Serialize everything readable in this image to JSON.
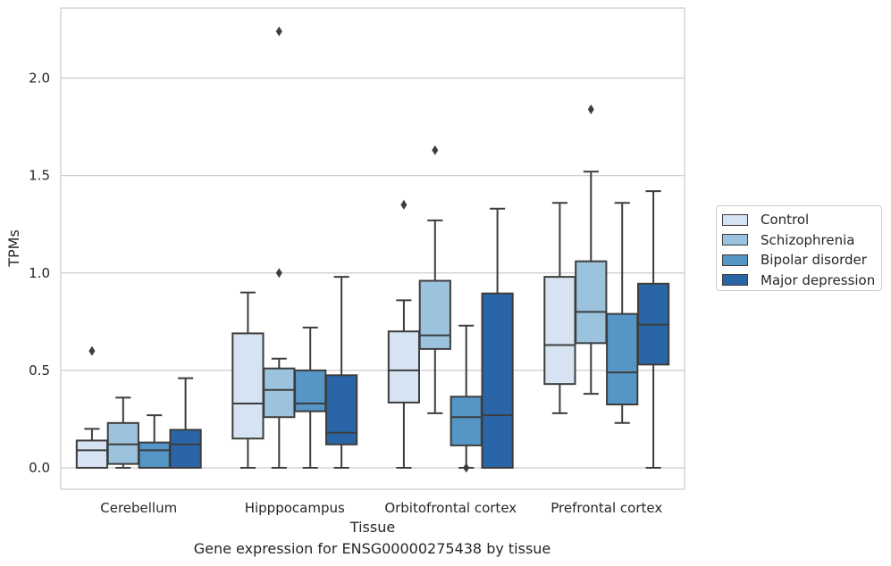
{
  "chart_data": {
    "type": "box",
    "caption": "Gene expression for ENSG00000275438 by tissue",
    "xlabel": "Tissue",
    "ylabel": "TPMs",
    "ylim": [
      -0.11,
      2.36
    ],
    "yticks": [
      0.0,
      0.5,
      1.0,
      1.5,
      2.0
    ],
    "ytick_labels": [
      "0.0",
      "0.5",
      "1.0",
      "1.5",
      "2.0"
    ],
    "grid": "horizontal",
    "legend_position": "right",
    "categories": [
      "Cerebellum",
      "Hipppocampus",
      "Orbitofrontal cortex",
      "Prefrontal cortex"
    ],
    "series": [
      {
        "name": "Control",
        "color": "#d6e3f3",
        "boxes": [
          {
            "whislo": 0.0,
            "q1": 0.0,
            "med": 0.09,
            "q3": 0.14,
            "whishi": 0.2,
            "fliers": [
              0.6
            ]
          },
          {
            "whislo": 0.0,
            "q1": 0.15,
            "med": 0.33,
            "q3": 0.69,
            "whishi": 0.9,
            "fliers": []
          },
          {
            "whislo": 0.0,
            "q1": 0.335,
            "med": 0.5,
            "q3": 0.7,
            "whishi": 0.86,
            "fliers": [
              1.35
            ]
          },
          {
            "whislo": 0.28,
            "q1": 0.43,
            "med": 0.63,
            "q3": 0.98,
            "whishi": 1.36,
            "fliers": []
          }
        ]
      },
      {
        "name": "Schizophrenia",
        "color": "#9bc3de",
        "boxes": [
          {
            "whislo": 0.0,
            "q1": 0.02,
            "med": 0.12,
            "q3": 0.23,
            "whishi": 0.36,
            "fliers": []
          },
          {
            "whislo": 0.0,
            "q1": 0.26,
            "med": 0.4,
            "q3": 0.51,
            "whishi": 0.56,
            "fliers": [
              1.0,
              2.24
            ]
          },
          {
            "whislo": 0.28,
            "q1": 0.61,
            "med": 0.68,
            "q3": 0.96,
            "whishi": 1.27,
            "fliers": [
              1.63
            ]
          },
          {
            "whislo": 0.38,
            "q1": 0.64,
            "med": 0.8,
            "q3": 1.06,
            "whishi": 1.52,
            "fliers": [
              1.84
            ]
          }
        ]
      },
      {
        "name": "Bipolar disorder",
        "color": "#5596c7",
        "boxes": [
          {
            "whislo": 0.0,
            "q1": 0.0,
            "med": 0.09,
            "q3": 0.13,
            "whishi": 0.27,
            "fliers": []
          },
          {
            "whislo": 0.0,
            "q1": 0.29,
            "med": 0.33,
            "q3": 0.5,
            "whishi": 0.72,
            "fliers": []
          },
          {
            "whislo": 0.0,
            "q1": 0.115,
            "med": 0.26,
            "q3": 0.365,
            "whishi": 0.73,
            "fliers": [
              0.0
            ]
          },
          {
            "whislo": 0.23,
            "q1": 0.325,
            "med": 0.49,
            "q3": 0.79,
            "whishi": 1.36,
            "fliers": []
          }
        ]
      },
      {
        "name": "Major depression",
        "color": "#2a66a7",
        "boxes": [
          {
            "whislo": 0.0,
            "q1": 0.0,
            "med": 0.12,
            "q3": 0.195,
            "whishi": 0.46,
            "fliers": []
          },
          {
            "whislo": 0.0,
            "q1": 0.12,
            "med": 0.18,
            "q3": 0.475,
            "whishi": 0.98,
            "fliers": []
          },
          {
            "whislo": 0.0,
            "q1": 0.0,
            "med": 0.27,
            "q3": 0.895,
            "whishi": 1.33,
            "fliers": []
          },
          {
            "whislo": 0.0,
            "q1": 0.53,
            "med": 0.735,
            "q3": 0.945,
            "whishi": 1.42,
            "fliers": []
          }
        ]
      }
    ]
  }
}
